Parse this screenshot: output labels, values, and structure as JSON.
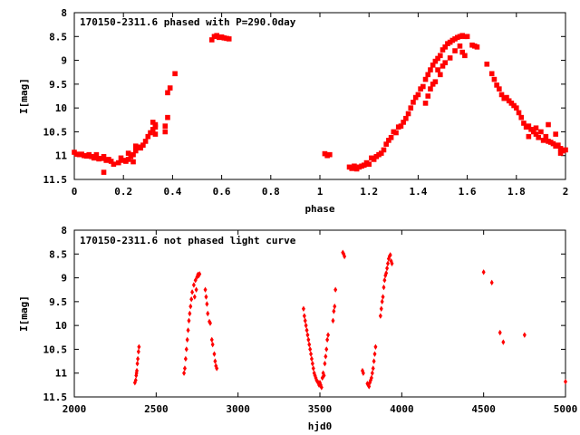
{
  "chart_data": [
    {
      "type": "scatter",
      "title": "170150-2311.6 phased with P=290.0day",
      "xlabel": "phase",
      "ylabel": "I[mag]",
      "xlim": [
        0,
        2
      ],
      "ylim": [
        11.5,
        8
      ],
      "y_inverted": true,
      "xticks": [
        "0",
        "0.2",
        "0.4",
        "0.6",
        "0.8",
        "1",
        "1.2",
        "1.4",
        "1.6",
        "1.8",
        "2"
      ],
      "yticks": [
        "8",
        "8.5",
        "9",
        "9.5",
        "10",
        "10.5",
        "11",
        "11.5"
      ],
      "marker_color": "#ff0000",
      "marker": "filled-square",
      "series": [
        {
          "points": [
            [
              0.0,
              10.93
            ],
            [
              0.01,
              10.97
            ],
            [
              0.02,
              10.98
            ],
            [
              0.03,
              10.97
            ],
            [
              0.04,
              11.0
            ],
            [
              0.05,
              11.01
            ],
            [
              0.06,
              10.98
            ],
            [
              0.07,
              11.02
            ],
            [
              0.08,
              11.05
            ],
            [
              0.09,
              10.98
            ],
            [
              0.1,
              11.07
            ],
            [
              0.11,
              11.06
            ],
            [
              0.12,
              11.02
            ],
            [
              0.13,
              11.1
            ],
            [
              0.14,
              11.08
            ],
            [
              0.15,
              11.12
            ],
            [
              0.12,
              11.35
            ],
            [
              0.16,
              11.18
            ],
            [
              0.18,
              11.15
            ],
            [
              0.19,
              11.05
            ],
            [
              0.2,
              11.1
            ],
            [
              0.21,
              11.12
            ],
            [
              0.22,
              11.08
            ],
            [
              0.23,
              11.02
            ],
            [
              0.22,
              10.95
            ],
            [
              0.24,
              10.98
            ],
            [
              0.24,
              11.13
            ],
            [
              0.25,
              10.9
            ],
            [
              0.25,
              10.8
            ],
            [
              0.26,
              10.82
            ],
            [
              0.27,
              10.84
            ],
            [
              0.28,
              10.78
            ],
            [
              0.29,
              10.7
            ],
            [
              0.3,
              10.6
            ],
            [
              0.31,
              10.52
            ],
            [
              0.32,
              10.45
            ],
            [
              0.32,
              10.3
            ],
            [
              0.33,
              10.35
            ],
            [
              0.33,
              10.4
            ],
            [
              0.33,
              10.55
            ],
            [
              0.37,
              10.5
            ],
            [
              0.37,
              10.38
            ],
            [
              0.38,
              10.2
            ],
            [
              0.38,
              9.68
            ],
            [
              0.39,
              9.58
            ],
            [
              0.41,
              9.28
            ],
            [
              0.56,
              8.57
            ],
            [
              0.57,
              8.5
            ],
            [
              0.58,
              8.48
            ],
            [
              0.59,
              8.52
            ],
            [
              0.6,
              8.51
            ],
            [
              0.61,
              8.53
            ],
            [
              0.62,
              8.54
            ],
            [
              0.63,
              8.55
            ],
            [
              1.02,
              10.96
            ],
            [
              1.03,
              11.0
            ],
            [
              1.04,
              10.98
            ],
            [
              1.12,
              11.24
            ],
            [
              1.13,
              11.27
            ],
            [
              1.14,
              11.22
            ],
            [
              1.15,
              11.28
            ],
            [
              1.16,
              11.24
            ],
            [
              1.17,
              11.22
            ],
            [
              1.18,
              11.2
            ],
            [
              1.19,
              11.15
            ],
            [
              1.2,
              11.18
            ],
            [
              1.21,
              11.05
            ],
            [
              1.22,
              11.08
            ],
            [
              1.23,
              11.02
            ],
            [
              1.24,
              10.98
            ],
            [
              1.25,
              10.95
            ],
            [
              1.26,
              10.88
            ],
            [
              1.27,
              10.76
            ],
            [
              1.28,
              10.68
            ],
            [
              1.29,
              10.62
            ],
            [
              1.3,
              10.5
            ],
            [
              1.31,
              10.52
            ],
            [
              1.32,
              10.4
            ],
            [
              1.33,
              10.38
            ],
            [
              1.34,
              10.3
            ],
            [
              1.35,
              10.22
            ],
            [
              1.36,
              10.12
            ],
            [
              1.37,
              10.0
            ],
            [
              1.38,
              9.88
            ],
            [
              1.39,
              9.78
            ],
            [
              1.4,
              9.72
            ],
            [
              1.41,
              9.6
            ],
            [
              1.42,
              9.55
            ],
            [
              1.43,
              9.4
            ],
            [
              1.44,
              9.3
            ],
            [
              1.45,
              9.2
            ],
            [
              1.46,
              9.1
            ],
            [
              1.47,
              9.02
            ],
            [
              1.48,
              8.96
            ],
            [
              1.49,
              8.9
            ],
            [
              1.5,
              8.78
            ],
            [
              1.51,
              8.72
            ],
            [
              1.52,
              8.65
            ],
            [
              1.53,
              8.62
            ],
            [
              1.54,
              8.58
            ],
            [
              1.55,
              8.55
            ],
            [
              1.56,
              8.52
            ],
            [
              1.57,
              8.5
            ],
            [
              1.58,
              8.48
            ],
            [
              1.59,
              8.5
            ],
            [
              1.6,
              8.5
            ],
            [
              1.43,
              9.9
            ],
            [
              1.44,
              9.75
            ],
            [
              1.45,
              9.6
            ],
            [
              1.46,
              9.5
            ],
            [
              1.47,
              9.45
            ],
            [
              1.48,
              9.2
            ],
            [
              1.49,
              9.3
            ],
            [
              1.5,
              9.12
            ],
            [
              1.51,
              9.05
            ],
            [
              1.53,
              8.95
            ],
            [
              1.55,
              8.8
            ],
            [
              1.57,
              8.7
            ],
            [
              1.58,
              8.83
            ],
            [
              1.59,
              8.9
            ],
            [
              1.62,
              8.68
            ],
            [
              1.63,
              8.7
            ],
            [
              1.64,
              8.72
            ],
            [
              1.68,
              9.08
            ],
            [
              1.7,
              9.28
            ],
            [
              1.71,
              9.4
            ],
            [
              1.72,
              9.52
            ],
            [
              1.73,
              9.6
            ],
            [
              1.74,
              9.72
            ],
            [
              1.75,
              9.8
            ],
            [
              1.76,
              9.78
            ],
            [
              1.77,
              9.85
            ],
            [
              1.78,
              9.9
            ],
            [
              1.79,
              9.95
            ],
            [
              1.8,
              10.0
            ],
            [
              1.81,
              10.1
            ],
            [
              1.82,
              10.2
            ],
            [
              1.83,
              10.32
            ],
            [
              1.84,
              10.4
            ],
            [
              1.85,
              10.38
            ],
            [
              1.86,
              10.45
            ],
            [
              1.87,
              10.5
            ],
            [
              1.88,
              10.55
            ],
            [
              1.89,
              10.62
            ],
            [
              1.9,
              10.5
            ],
            [
              1.91,
              10.68
            ],
            [
              1.92,
              10.6
            ],
            [
              1.93,
              10.7
            ],
            [
              1.94,
              10.72
            ],
            [
              1.95,
              10.75
            ],
            [
              1.96,
              10.8
            ],
            [
              1.97,
              10.78
            ],
            [
              1.98,
              10.85
            ],
            [
              1.99,
              10.9
            ],
            [
              2.0,
              10.88
            ],
            [
              1.93,
              10.35
            ],
            [
              1.96,
              10.55
            ],
            [
              1.98,
              10.95
            ],
            [
              1.85,
              10.6
            ],
            [
              1.88,
              10.42
            ]
          ]
        }
      ]
    },
    {
      "type": "scatter",
      "title": "170150-2311.6 not phased light curve",
      "xlabel": "hjd0",
      "ylabel": "I[mag]",
      "xlim": [
        2000,
        5000
      ],
      "ylim": [
        11.5,
        8
      ],
      "y_inverted": true,
      "xticks": [
        "2000",
        "2500",
        "3000",
        "3500",
        "4000",
        "4500",
        "5000"
      ],
      "yticks": [
        "8",
        "8.5",
        "9",
        "9.5",
        "10",
        "10.5",
        "11",
        "11.5"
      ],
      "marker_color": "#ff0000",
      "marker": "filled-diamond",
      "series": [
        {
          "points": [
            [
              2370,
              11.2
            ],
            [
              2375,
              11.15
            ],
            [
              2378,
              11.05
            ],
            [
              2380,
              11.0
            ],
            [
              2382,
              10.95
            ],
            [
              2385,
              10.8
            ],
            [
              2388,
              10.7
            ],
            [
              2392,
              10.55
            ],
            [
              2395,
              10.45
            ],
            [
              2670,
              11.0
            ],
            [
              2675,
              10.9
            ],
            [
              2680,
              10.7
            ],
            [
              2685,
              10.5
            ],
            [
              2690,
              10.3
            ],
            [
              2695,
              10.1
            ],
            [
              2700,
              9.9
            ],
            [
              2705,
              9.75
            ],
            [
              2710,
              9.6
            ],
            [
              2715,
              9.45
            ],
            [
              2720,
              9.3
            ],
            [
              2730,
              9.15
            ],
            [
              2740,
              9.05
            ],
            [
              2750,
              8.98
            ],
            [
              2755,
              8.93
            ],
            [
              2760,
              8.95
            ],
            [
              2765,
              8.92
            ],
            [
              2735,
              9.4
            ],
            [
              2745,
              9.25
            ],
            [
              2800,
              9.25
            ],
            [
              2805,
              9.4
            ],
            [
              2810,
              9.55
            ],
            [
              2815,
              9.75
            ],
            [
              2825,
              9.92
            ],
            [
              2830,
              9.95
            ],
            [
              2840,
              10.3
            ],
            [
              2845,
              10.4
            ],
            [
              2855,
              10.6
            ],
            [
              2860,
              10.75
            ],
            [
              2865,
              10.85
            ],
            [
              2870,
              10.9
            ],
            [
              3400,
              9.65
            ],
            [
              3405,
              9.8
            ],
            [
              3410,
              9.9
            ],
            [
              3415,
              10.0
            ],
            [
              3420,
              10.1
            ],
            [
              3425,
              10.2
            ],
            [
              3430,
              10.3
            ],
            [
              3435,
              10.4
            ],
            [
              3440,
              10.5
            ],
            [
              3445,
              10.6
            ],
            [
              3450,
              10.7
            ],
            [
              3455,
              10.8
            ],
            [
              3460,
              10.9
            ],
            [
              3465,
              11.0
            ],
            [
              3470,
              11.05
            ],
            [
              3475,
              11.1
            ],
            [
              3480,
              11.15
            ],
            [
              3485,
              11.18
            ],
            [
              3490,
              11.2
            ],
            [
              3495,
              11.25
            ],
            [
              3500,
              11.2
            ],
            [
              3505,
              11.25
            ],
            [
              3510,
              11.3
            ],
            [
              3515,
              11.1
            ],
            [
              3520,
              11.0
            ],
            [
              3525,
              11.05
            ],
            [
              3530,
              10.8
            ],
            [
              3535,
              10.65
            ],
            [
              3540,
              10.5
            ],
            [
              3545,
              10.3
            ],
            [
              3550,
              10.2
            ],
            [
              3580,
              9.9
            ],
            [
              3585,
              9.7
            ],
            [
              3590,
              9.6
            ],
            [
              3595,
              9.25
            ],
            [
              3640,
              8.47
            ],
            [
              3645,
              8.5
            ],
            [
              3650,
              8.55
            ],
            [
              3760,
              10.95
            ],
            [
              3765,
              11.0
            ],
            [
              3790,
              11.22
            ],
            [
              3795,
              11.25
            ],
            [
              3800,
              11.28
            ],
            [
              3805,
              11.2
            ],
            [
              3810,
              11.15
            ],
            [
              3815,
              11.1
            ],
            [
              3820,
              11.0
            ],
            [
              3825,
              10.9
            ],
            [
              3830,
              10.75
            ],
            [
              3835,
              10.6
            ],
            [
              3840,
              10.45
            ],
            [
              3870,
              9.8
            ],
            [
              3875,
              9.65
            ],
            [
              3880,
              9.5
            ],
            [
              3885,
              9.4
            ],
            [
              3890,
              9.2
            ],
            [
              3895,
              9.05
            ],
            [
              3900,
              8.95
            ],
            [
              3905,
              8.9
            ],
            [
              3910,
              8.8
            ],
            [
              3915,
              8.7
            ],
            [
              3920,
              8.6
            ],
            [
              3925,
              8.55
            ],
            [
              3930,
              8.52
            ],
            [
              3935,
              8.65
            ],
            [
              3940,
              8.7
            ],
            [
              4500,
              8.88
            ],
            [
              4550,
              9.1
            ],
            [
              4600,
              10.15
            ],
            [
              4620,
              10.35
            ],
            [
              4750,
              10.2
            ],
            [
              5000,
              11.18
            ]
          ]
        }
      ]
    }
  ]
}
